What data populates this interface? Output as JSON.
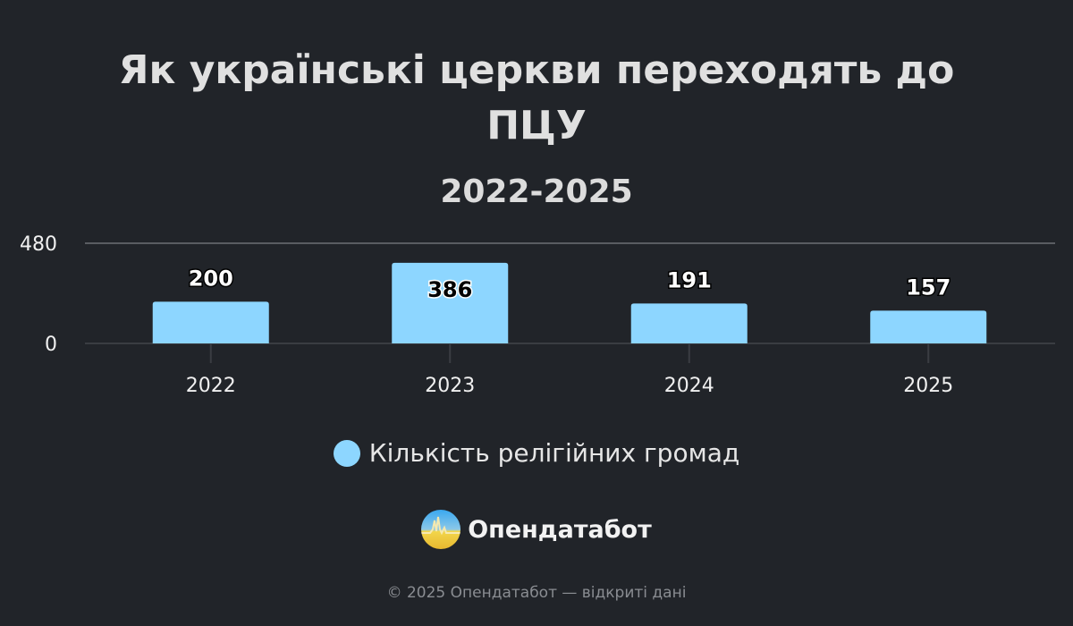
{
  "chart_data": {
    "type": "bar",
    "title": [
      "Як українські церкви переходять до",
      "ПЦУ"
    ],
    "subtitle": "2022-2025",
    "categories": [
      "2022",
      "2023",
      "2024",
      "2025"
    ],
    "series": [
      {
        "name": "Кількість релігійних громад",
        "values": [
          200,
          386,
          191,
          157
        ],
        "color": "#8dd6ff"
      }
    ],
    "ylim": [
      0,
      480
    ],
    "yticks": [
      0,
      480
    ],
    "grid": true,
    "legend": "bottom",
    "data_labels": true
  },
  "brand": {
    "name": "Опендатабот"
  },
  "footer": "© 2025 Опендатабот — відкриті дані"
}
